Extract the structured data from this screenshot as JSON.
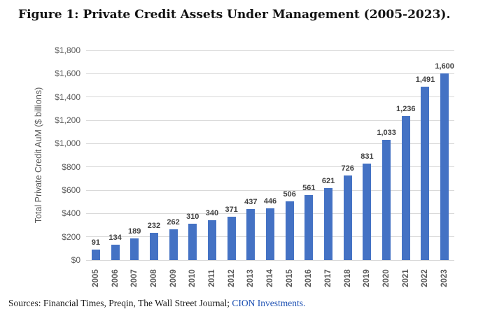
{
  "figure": {
    "title": "Figure 1: Private Credit Assets Under Management (2005-2023).",
    "sources_prefix": "Sources: Financial Times, Preqin, The Wall Street Journal; ",
    "sources_link": "CION Investments",
    "sources_suffix": "."
  },
  "colors": {
    "bar": "#4472C4",
    "gridline": "#D9D9D9",
    "axis_text": "#595959",
    "data_label_text": "#404040",
    "link": "#1F52B4"
  },
  "chart_data": {
    "type": "bar",
    "title": "Figure 1: Private Credit Assets Under Management (2005-2023).",
    "xlabel": "",
    "ylabel": "Total Private Credit AuM ($ billions)",
    "categories": [
      "2005",
      "2006",
      "2007",
      "2008",
      "2009",
      "2010",
      "2011",
      "2012",
      "2013",
      "2014",
      "2015",
      "2016",
      "2017",
      "2018",
      "2019",
      "2020",
      "2021",
      "2022",
      "2023"
    ],
    "values": [
      91,
      134,
      189,
      232,
      262,
      310,
      340,
      371,
      437,
      446,
      506,
      561,
      621,
      726,
      831,
      1033,
      1236,
      1491,
      1600
    ],
    "value_labels": [
      "91",
      "134",
      "189",
      "232",
      "262",
      "310",
      "340",
      "371",
      "437",
      "446",
      "506",
      "561",
      "621",
      "726",
      "831",
      "1,033",
      "1,236",
      "1,491",
      "1,600"
    ],
    "ylim": [
      0,
      1800
    ],
    "ytick_interval": 200,
    "ytick_labels": [
      "$0",
      "$200",
      "$400",
      "$600",
      "$800",
      "$1,000",
      "$1,200",
      "$1,400",
      "$1,600",
      "$1,800"
    ],
    "grid": true,
    "legend": false
  }
}
